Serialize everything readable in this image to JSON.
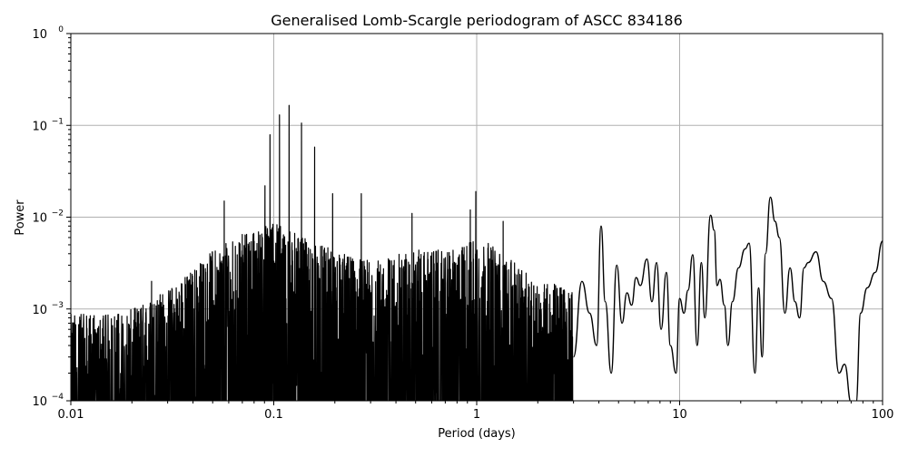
{
  "chart_data": {
    "type": "line",
    "title": "Generalised Lomb-Scargle periodogram of ASCC 834186",
    "xlabel": "Period (days)",
    "ylabel": "Power",
    "xscale": "log",
    "yscale": "log",
    "xlim": [
      0.01,
      100
    ],
    "ylim": [
      0.0001,
      1
    ],
    "grid": true,
    "x_ticks": [
      "0.01",
      "0.1",
      "1",
      "10",
      "100"
    ],
    "y_ticks": [
      {
        "base": "10",
        "exp": "0",
        "value": 1
      },
      {
        "base": "10",
        "exp": "−1",
        "value": 0.1
      },
      {
        "base": "10",
        "exp": "−2",
        "value": 0.01
      },
      {
        "base": "10",
        "exp": "−3",
        "value": 0.001
      },
      {
        "base": "10",
        "exp": "−4",
        "value": 0.0001
      }
    ],
    "line_color": "#000000",
    "grid_color": "#b0b0b0",
    "envelope": {
      "description": "Dense noisy oscillation region; approx upper envelope (period, power)",
      "points": [
        [
          0.01,
          0.0008
        ],
        [
          0.015,
          0.0008
        ],
        [
          0.02,
          0.0009
        ],
        [
          0.03,
          0.0015
        ],
        [
          0.04,
          0.0025
        ],
        [
          0.05,
          0.004
        ],
        [
          0.07,
          0.006
        ],
        [
          0.1,
          0.008
        ],
        [
          0.15,
          0.005
        ],
        [
          0.2,
          0.004
        ],
        [
          0.3,
          0.003
        ],
        [
          0.5,
          0.004
        ],
        [
          0.8,
          0.004
        ],
        [
          1.0,
          0.006
        ],
        [
          1.5,
          0.003
        ],
        [
          2,
          0.002
        ],
        [
          3,
          0.0015
        ]
      ]
    },
    "peaks": [
      {
        "period": 0.0958,
        "power": 0.079
      },
      {
        "period": 0.1067,
        "power": 0.13
      },
      {
        "period": 0.119,
        "power": 0.165
      },
      {
        "period": 0.137,
        "power": 0.106
      },
      {
        "period": 0.159,
        "power": 0.058
      },
      {
        "period": 0.0905,
        "power": 0.022
      },
      {
        "period": 0.057,
        "power": 0.015
      },
      {
        "period": 0.195,
        "power": 0.018
      },
      {
        "period": 0.27,
        "power": 0.018
      },
      {
        "period": 0.48,
        "power": 0.011
      },
      {
        "period": 0.99,
        "power": 0.019
      },
      {
        "period": 0.93,
        "power": 0.012
      },
      {
        "period": 1.35,
        "power": 0.009
      },
      {
        "period": 0.025,
        "power": 0.002
      }
    ],
    "smooth_curve": [
      [
        3.0,
        0.0003
      ],
      [
        3.3,
        0.002
      ],
      [
        3.6,
        0.0009
      ],
      [
        3.9,
        0.0004
      ],
      [
        4.1,
        0.008
      ],
      [
        4.3,
        0.0012
      ],
      [
        4.6,
        0.0002
      ],
      [
        4.9,
        0.003
      ],
      [
        5.2,
        0.0007
      ],
      [
        5.5,
        0.0015
      ],
      [
        5.8,
        0.0011
      ],
      [
        6.1,
        0.0022
      ],
      [
        6.4,
        0.0018
      ],
      [
        6.9,
        0.0035
      ],
      [
        7.3,
        0.0012
      ],
      [
        7.7,
        0.0032
      ],
      [
        8.1,
        0.0006
      ],
      [
        8.6,
        0.0025
      ],
      [
        9.0,
        0.0004
      ],
      [
        9.6,
        0.0002
      ],
      [
        10.0,
        0.0013
      ],
      [
        10.5,
        0.0009
      ],
      [
        11.0,
        0.0016
      ],
      [
        11.6,
        0.0039
      ],
      [
        12.2,
        0.0004
      ],
      [
        12.8,
        0.0032
      ],
      [
        13.3,
        0.0008
      ],
      [
        14.2,
        0.0105
      ],
      [
        14.8,
        0.0072
      ],
      [
        15.3,
        0.0018
      ],
      [
        15.8,
        0.0021
      ],
      [
        16.6,
        0.0011
      ],
      [
        17.3,
        0.0004
      ],
      [
        18.2,
        0.0012
      ],
      [
        19.5,
        0.0028
      ],
      [
        21.0,
        0.0045
      ],
      [
        22.0,
        0.0052
      ],
      [
        23.5,
        0.0002
      ],
      [
        24.5,
        0.0017
      ],
      [
        25.5,
        0.0003
      ],
      [
        26.5,
        0.004
      ],
      [
        28.0,
        0.0165
      ],
      [
        29.5,
        0.009
      ],
      [
        31.0,
        0.006
      ],
      [
        33.0,
        0.0009
      ],
      [
        35.0,
        0.0028
      ],
      [
        37.0,
        0.0012
      ],
      [
        39.0,
        0.0008
      ],
      [
        41.0,
        0.0028
      ],
      [
        43.0,
        0.0032
      ],
      [
        47.0,
        0.0042
      ],
      [
        51.0,
        0.002
      ],
      [
        56.0,
        0.0013
      ],
      [
        61.0,
        0.0002
      ],
      [
        65.0,
        0.00025
      ],
      [
        70.0,
        8e-05
      ],
      [
        74.0,
        8e-05
      ],
      [
        78.0,
        0.0009
      ],
      [
        84.0,
        0.0017
      ],
      [
        92.0,
        0.0025
      ],
      [
        100.0,
        0.0055
      ]
    ]
  }
}
